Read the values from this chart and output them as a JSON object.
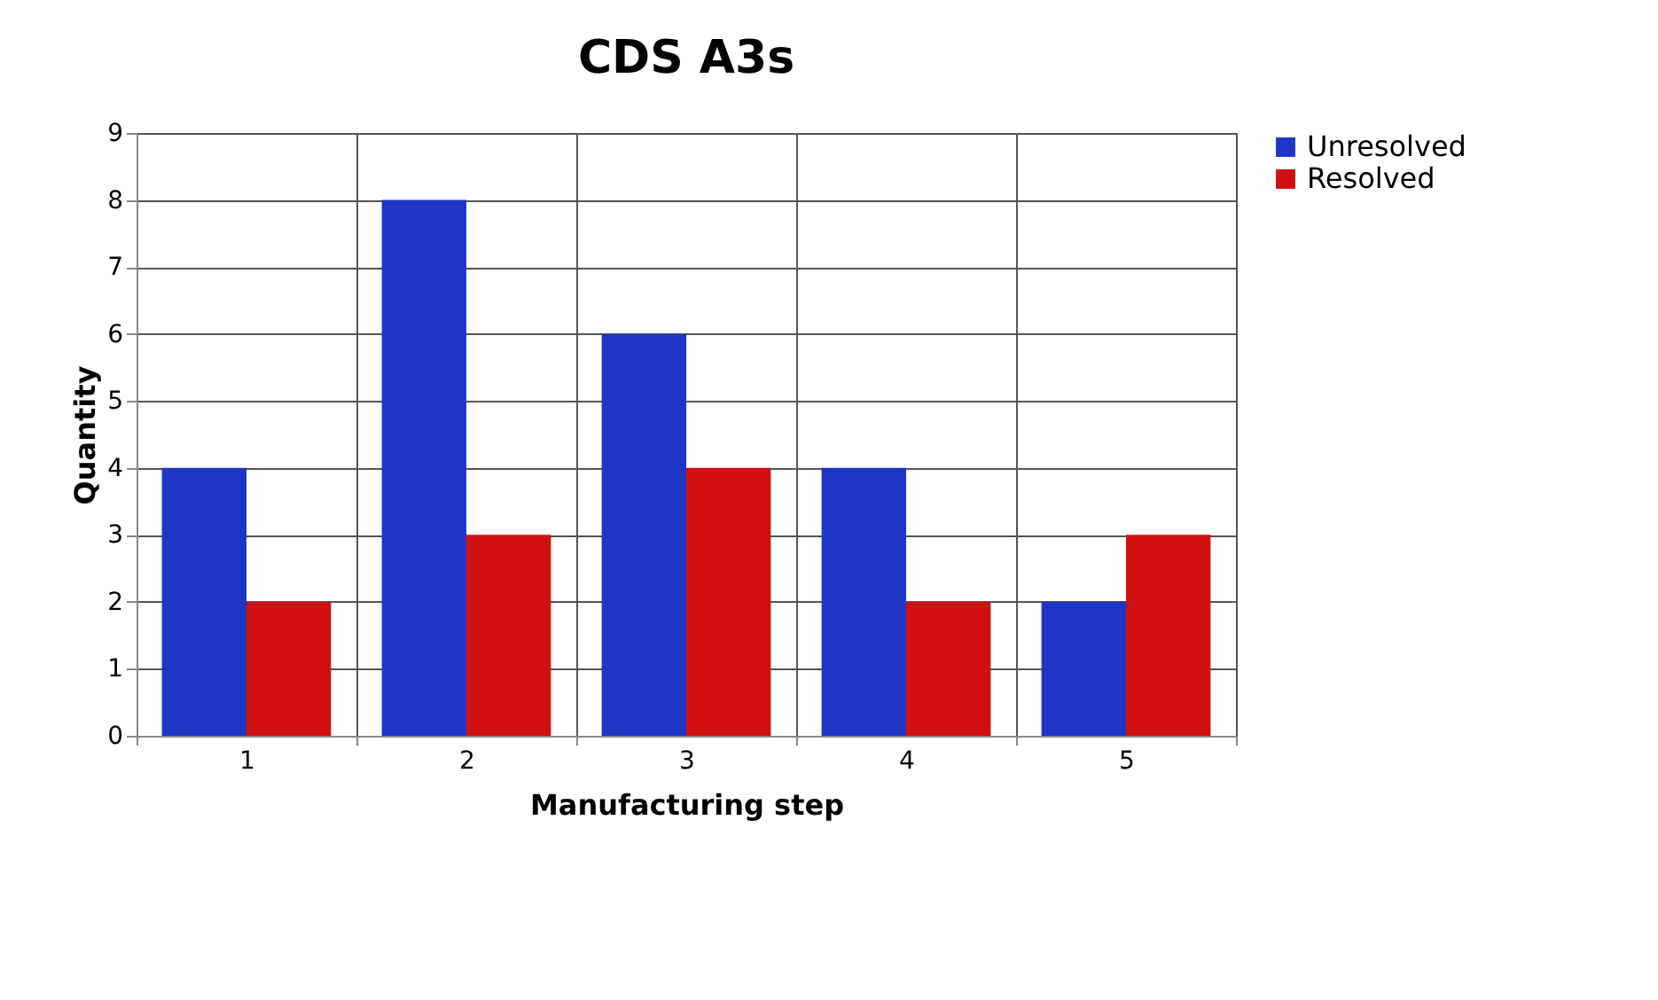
{
  "chart_data": {
    "type": "bar",
    "title": "CDS A3s",
    "xlabel": "Manufacturing step",
    "ylabel": "Quantity",
    "categories": [
      "1",
      "2",
      "3",
      "4",
      "5"
    ],
    "series": [
      {
        "name": "Unresolved",
        "color": "#1f35c4",
        "values": [
          4,
          8,
          6,
          4,
          2
        ]
      },
      {
        "name": "Resolved",
        "color": "#d01010",
        "values": [
          2,
          3,
          4,
          2,
          3
        ]
      }
    ],
    "ylim": [
      0,
      9
    ],
    "yticks": [
      0,
      1,
      2,
      3,
      4,
      5,
      6,
      7,
      8,
      9
    ],
    "grid": true,
    "legend": "right"
  }
}
